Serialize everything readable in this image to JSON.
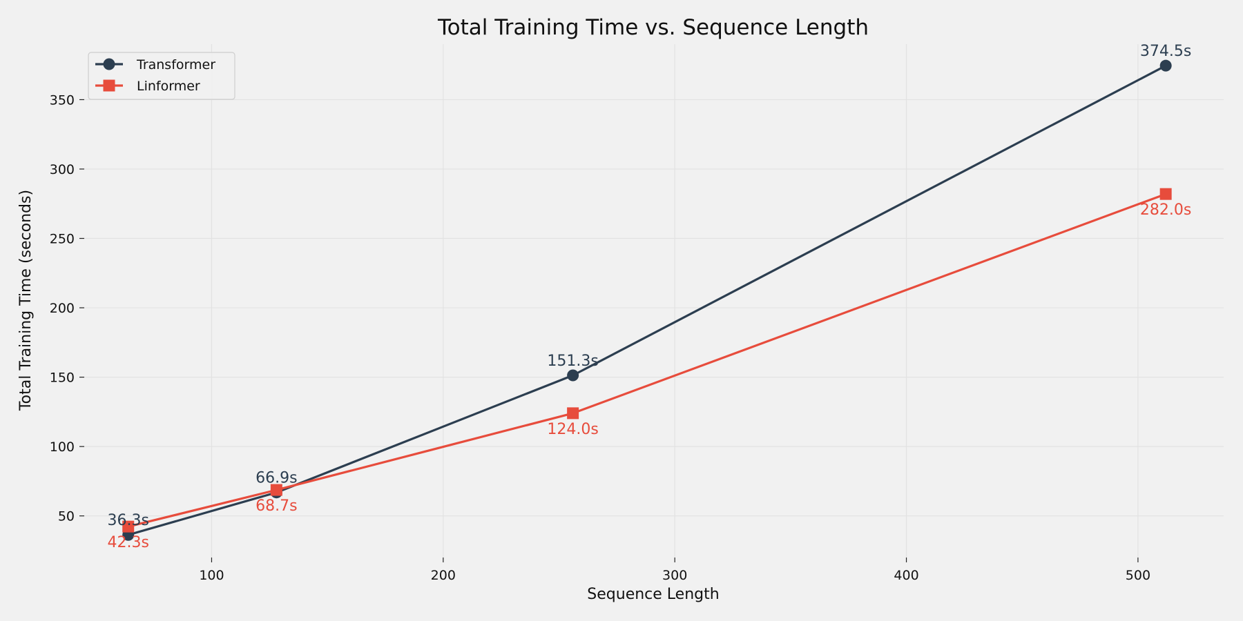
{
  "chart_data": {
    "type": "line",
    "title": "Total Training Time vs. Sequence Length",
    "xlabel": "Sequence Length",
    "ylabel": "Total Training Time (seconds)",
    "x": [
      64,
      128,
      256,
      512
    ],
    "xlim": [
      45,
      537
    ],
    "ylim": [
      20,
      390
    ],
    "xticks": [
      100,
      200,
      300,
      400,
      500
    ],
    "yticks": [
      50,
      100,
      150,
      200,
      250,
      300,
      350
    ],
    "grid": true,
    "legend_position": "top-left",
    "series": [
      {
        "name": "Transformer",
        "values": [
          36.3,
          66.9,
          151.3,
          374.5
        ],
        "labels": [
          "36.3s",
          "66.9s",
          "151.3s",
          "374.5s"
        ],
        "color": "#2c3e50",
        "marker": "circle",
        "label_position": "above"
      },
      {
        "name": "Linformer",
        "values": [
          42.3,
          68.7,
          124.0,
          282.0
        ],
        "labels": [
          "42.3s",
          "68.7s",
          "124.0s",
          "282.0s"
        ],
        "color": "#e74c3c",
        "marker": "square",
        "label_position": "below"
      }
    ]
  }
}
